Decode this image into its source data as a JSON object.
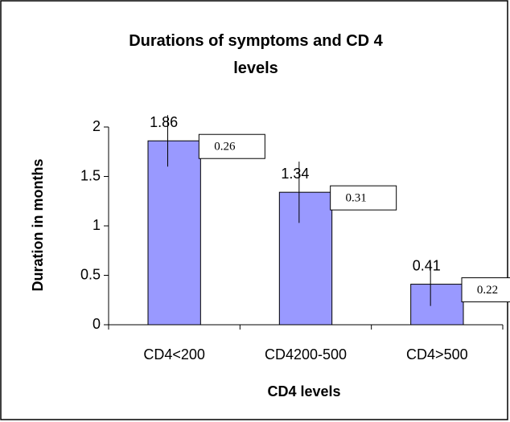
{
  "chart_data": {
    "type": "bar",
    "title": "Durations of symptoms and CD 4 levels",
    "y_label": "Duration in  months",
    "x_label": "CD4 levels",
    "categories": [
      "CD4<200",
      "CD4200-500",
      "CD4>500"
    ],
    "values": [
      1.86,
      1.34,
      0.41
    ],
    "errors": [
      0.26,
      0.31,
      0.22
    ],
    "color": "#9999ff",
    "ylim": [
      0,
      2
    ],
    "yticks": [
      0,
      0.5,
      1,
      1.5,
      2
    ],
    "grid": false
  }
}
